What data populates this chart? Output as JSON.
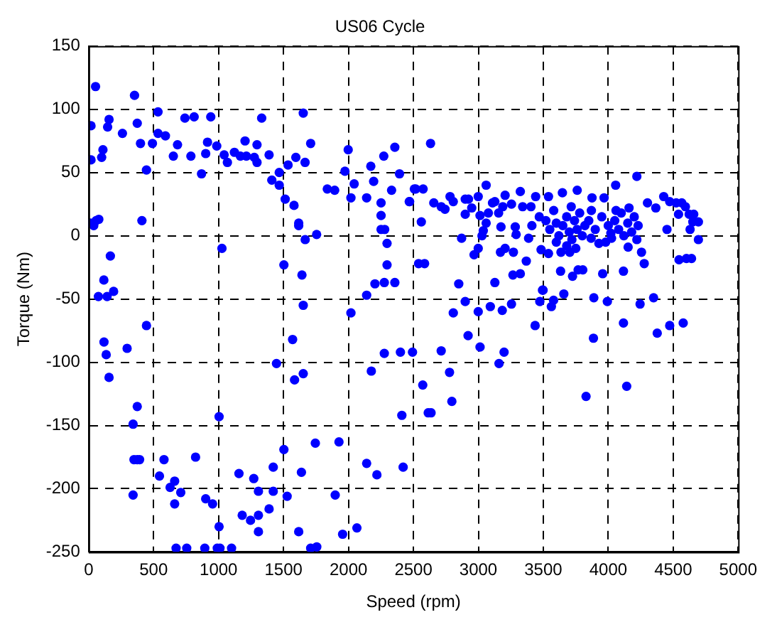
{
  "chart_data": {
    "type": "scatter",
    "title": "US06 Cycle",
    "xlabel": "Speed (rpm)",
    "ylabel": "Torque (Nm)",
    "xlim": [
      0,
      5000
    ],
    "xticks": [
      0,
      500,
      1000,
      1500,
      2000,
      2500,
      3000,
      3500,
      4000,
      4500,
      5000
    ],
    "ylim": [
      -250,
      150
    ],
    "yticks": [
      -250,
      -200,
      -150,
      -100,
      -50,
      0,
      50,
      100,
      150
    ],
    "grid": true,
    "marker": "circle",
    "legend": false,
    "series": [
      {
        "color": "#0000ff",
        "x": [
          53,
          353,
          18,
          157,
          146,
          374,
          260,
          534,
          741,
          812,
          940,
          1332,
          1652,
          534,
          591,
          399,
          491,
          684,
          110,
          18,
          100,
          652,
          787,
          901,
          915,
          986,
          1043,
          1068,
          1122,
          1168,
          1204,
          1214,
          1275,
          1296,
          1296,
          1389,
          1709,
          1595,
          1666,
          1535,
          445,
          869,
          1467,
          1410,
          1467,
          1513,
          1581,
          1998,
          1973,
          2172,
          2272,
          2357,
          2393,
          2194,
          2044,
          1837,
          1894,
          2019,
          2140,
          2332,
          2251,
          2471,
          2507,
          2251,
          1617,
          1617,
          1755,
          1667,
          2251,
          2279,
          2297,
          14,
          39,
          57,
          78,
          410,
          1026,
          1503,
          1642,
          2297,
          167,
          117,
          192,
          75,
          142,
          2140,
          2204,
          2276,
          2357,
          445,
          118,
          296,
          135,
          157,
          374,
          342,
          349,
          374,
          392,
          342,
          580,
          545,
          627,
          662,
          709,
          662,
          823,
          901,
          954,
          673,
          755,
          894,
          990,
          1011,
          1100,
          1004,
          1004,
          1157,
          1271,
          1307,
          1421,
          1421,
          1503,
          1528,
          1638,
          1745,
          1182,
          1246,
          1307,
          1389,
          1307,
          1617,
          1709,
          1756,
          1927,
          1898,
          1955,
          2065,
          2140,
          2219,
          2421,
          1446,
          1570,
          1652,
          1585,
          1652,
          2019,
          2176,
          2276,
          2400,
          2493,
          2411,
          2572,
          2614,
          2636,
          2714,
          2778,
          2796,
          2807,
          2899,
          2921,
          2999,
          3013,
          3092,
          3159,
          3184,
          3198,
          3255,
          3437,
          3473,
          3494,
          3562,
          3579,
          3658,
          3829,
          3886,
          3889,
          3993,
          4117,
          4142,
          4245,
          4349,
          4377,
          4473,
          4577,
          2632,
          2468,
          2518,
          2575,
          2561,
          2657,
          2714,
          2743,
          2782,
          2807,
          2899,
          2924,
          2899,
          2949,
          2871,
          2999,
          3060,
          3013,
          3077,
          3109,
          3127,
          3156,
          3188,
          3206,
          3255,
          3323,
          3341,
          3405,
          3441,
          3469,
          3540,
          3647,
          3761,
          3715,
          3875,
          3968,
          4057,
          4220,
          4302,
          4366,
          4427,
          4473,
          4523,
          4566,
          4594,
          4541,
          4623,
          4658,
          4651,
          4694,
          4630,
          4694,
          4452,
          3038,
          3028,
          3060,
          3174,
          3284,
          3291,
          3387,
          3412,
          3170,
          3206,
          3270,
          2967,
          2999,
          3483,
          3540,
          3636,
          3704,
          3750,
          3369,
          3266,
          3323,
          3127,
          2849,
          2540,
          2586,
          3633,
          3725,
          3768,
          3804,
          3957,
          4117,
          4256,
          4277,
          4545,
          4602,
          4641,
          3498,
          3868,
          3928,
          4025,
          4153,
          3550,
          3600,
          3620,
          3650,
          3680,
          3700,
          3720,
          3740,
          3760,
          3780,
          3800,
          3820,
          3850,
          3900,
          3950,
          4000,
          4020,
          4050,
          4080,
          4100,
          4120,
          4150,
          4180,
          4200,
          4220,
          4230,
          3980,
          3870,
          3600,
          3680,
          4060,
          4160,
          3520,
          3580
        ],
        "values": [
          118,
          111,
          87,
          92,
          86,
          89,
          81,
          98,
          93,
          94,
          94,
          93,
          97,
          81,
          79,
          73,
          73,
          72,
          68,
          60,
          62,
          63,
          63,
          65,
          74,
          71,
          64,
          58,
          66,
          63,
          75,
          63,
          62,
          58,
          72,
          64,
          73,
          62,
          58,
          56,
          52,
          49,
          50,
          44,
          40,
          29,
          24,
          68,
          51,
          55,
          63,
          70,
          49,
          43,
          41,
          37,
          36,
          30,
          30,
          36,
          26,
          27,
          37,
          16,
          10,
          8,
          1,
          -3,
          5,
          5,
          -6,
          10,
          8,
          12,
          13,
          12,
          -10,
          -23,
          -31,
          -23,
          -16,
          -35,
          -44,
          -48,
          -48,
          -47,
          -38,
          -37,
          -37,
          -71,
          -84,
          -89,
          -94,
          -112,
          -135,
          -149,
          -177,
          -177,
          -177,
          -205,
          -177,
          -190,
          -199,
          -194,
          -203,
          -212,
          -175,
          -208,
          -212,
          -247,
          -247,
          -247,
          -247,
          -247,
          -247,
          -230,
          -143,
          -188,
          -192,
          -202,
          -202,
          -183,
          -169,
          -206,
          -187,
          -164,
          -221,
          -225,
          -221,
          -216,
          -234,
          -234,
          -247,
          -246,
          -163,
          -205,
          -236,
          -231,
          -180,
          -189,
          -183,
          -101,
          -82,
          -55,
          -114,
          -109,
          -61,
          -107,
          -93,
          -92,
          -92,
          -142,
          -118,
          -140,
          -140,
          -91,
          -108,
          -131,
          -61,
          -52,
          -79,
          -60,
          -88,
          -56,
          -101,
          -59,
          -92,
          -54,
          -71,
          -52,
          -43,
          -56,
          -51,
          -46,
          -127,
          -81,
          -49,
          -52,
          -69,
          -119,
          -54,
          -49,
          -77,
          -71,
          -69,
          73,
          27,
          37,
          37,
          11,
          26,
          23,
          21,
          31,
          27,
          29,
          29,
          17,
          22,
          -2,
          31,
          40,
          16,
          18,
          26,
          27,
          18,
          23,
          32,
          25,
          35,
          23,
          23,
          31,
          15,
          31,
          34,
          36,
          23,
          30,
          30,
          40,
          47,
          26,
          22,
          31,
          27,
          26,
          26,
          23,
          17,
          17,
          17,
          11,
          11,
          5,
          -3,
          5,
          4,
          0,
          10,
          7,
          7,
          1,
          -2,
          8,
          -13,
          -10,
          -13,
          -15,
          -10,
          -11,
          -14,
          -13,
          -13,
          -10,
          -20,
          -31,
          -30,
          -37,
          -38,
          -22,
          -22,
          -28,
          -32,
          -27,
          -27,
          -30,
          -28,
          -13,
          -22,
          -19,
          -18,
          -18,
          -43,
          -2,
          -6,
          -2,
          -9,
          5,
          10,
          0,
          8,
          15,
          3,
          -3,
          12,
          5,
          18,
          0,
          8,
          12,
          5,
          15,
          8,
          2,
          12,
          5,
          18,
          0,
          10,
          3,
          15,
          -3,
          8,
          -5,
          20,
          -5,
          -8,
          20,
          22,
          12,
          20
        ]
      }
    ]
  }
}
